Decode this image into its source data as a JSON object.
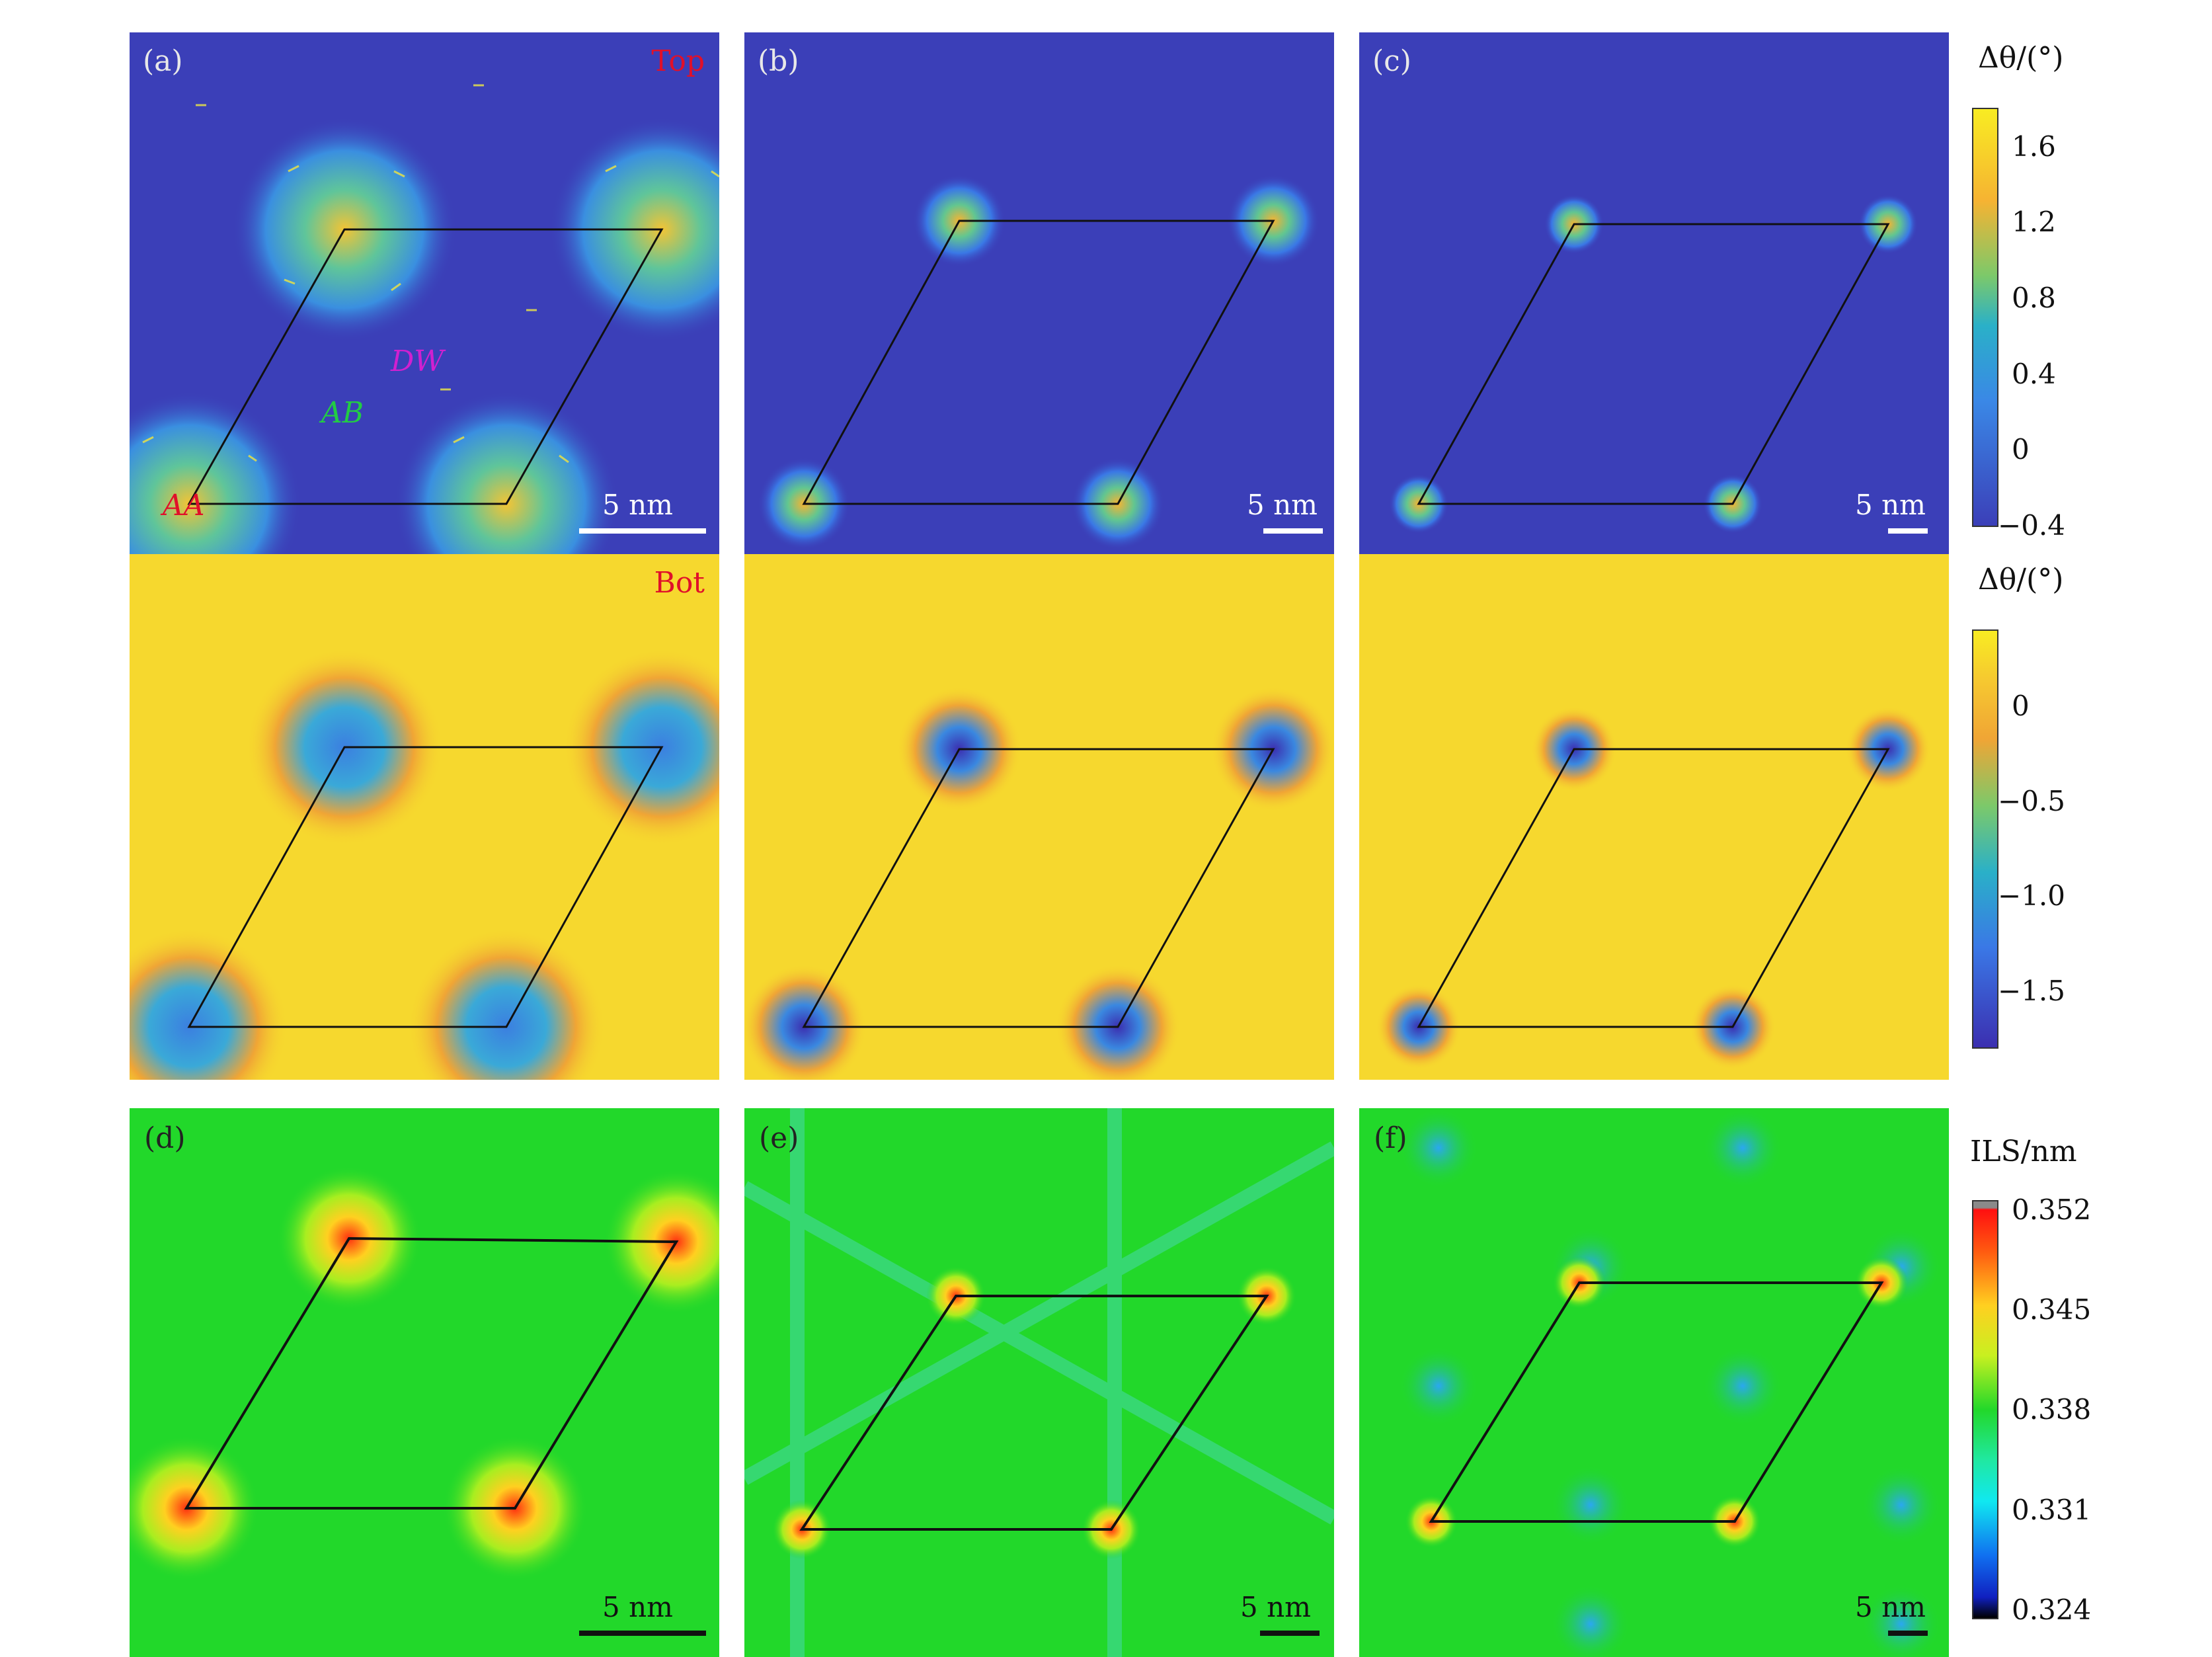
{
  "panels": {
    "a": {
      "label": "(a)",
      "layer_top": "Top",
      "scale": "5 nm",
      "regions": {
        "aa": "AA",
        "ab": "AB",
        "dw": "DW"
      }
    },
    "b": {
      "label": "(b)",
      "scale": "5 nm"
    },
    "c": {
      "label": "(c)",
      "scale": "5 nm"
    },
    "bot": {
      "layer_bot": "Bot"
    },
    "d": {
      "label": "(d)",
      "scale": "5 nm"
    },
    "e": {
      "label": "(e)",
      "scale": "5 nm"
    },
    "f": {
      "label": "(f)",
      "scale": "5 nm"
    }
  },
  "colorbars": {
    "top": {
      "title": "Δθ/(°)",
      "ticks": [
        "1.6",
        "1.2",
        "0.8",
        "0.4",
        "0",
        "−0.4"
      ],
      "range": [
        -0.4,
        1.8
      ]
    },
    "bot": {
      "title": "Δθ/(°)",
      "ticks": [
        "0",
        "−0.5",
        "−1.0",
        "−1.5"
      ],
      "range": [
        -1.8,
        0.4
      ]
    },
    "ils": {
      "title": "ILS/nm",
      "ticks": [
        "0.352",
        "0.345",
        "0.338",
        "0.331",
        "0.324"
      ],
      "range": [
        0.324,
        0.352
      ]
    }
  },
  "colors": {
    "top_bg": "#3b3fb8",
    "bot_bg": "#f6d82e",
    "ils_bg": "#22d82a",
    "region_aa": "#e0102a",
    "region_ab": "#22cc44",
    "region_dw": "#d020d0"
  }
}
